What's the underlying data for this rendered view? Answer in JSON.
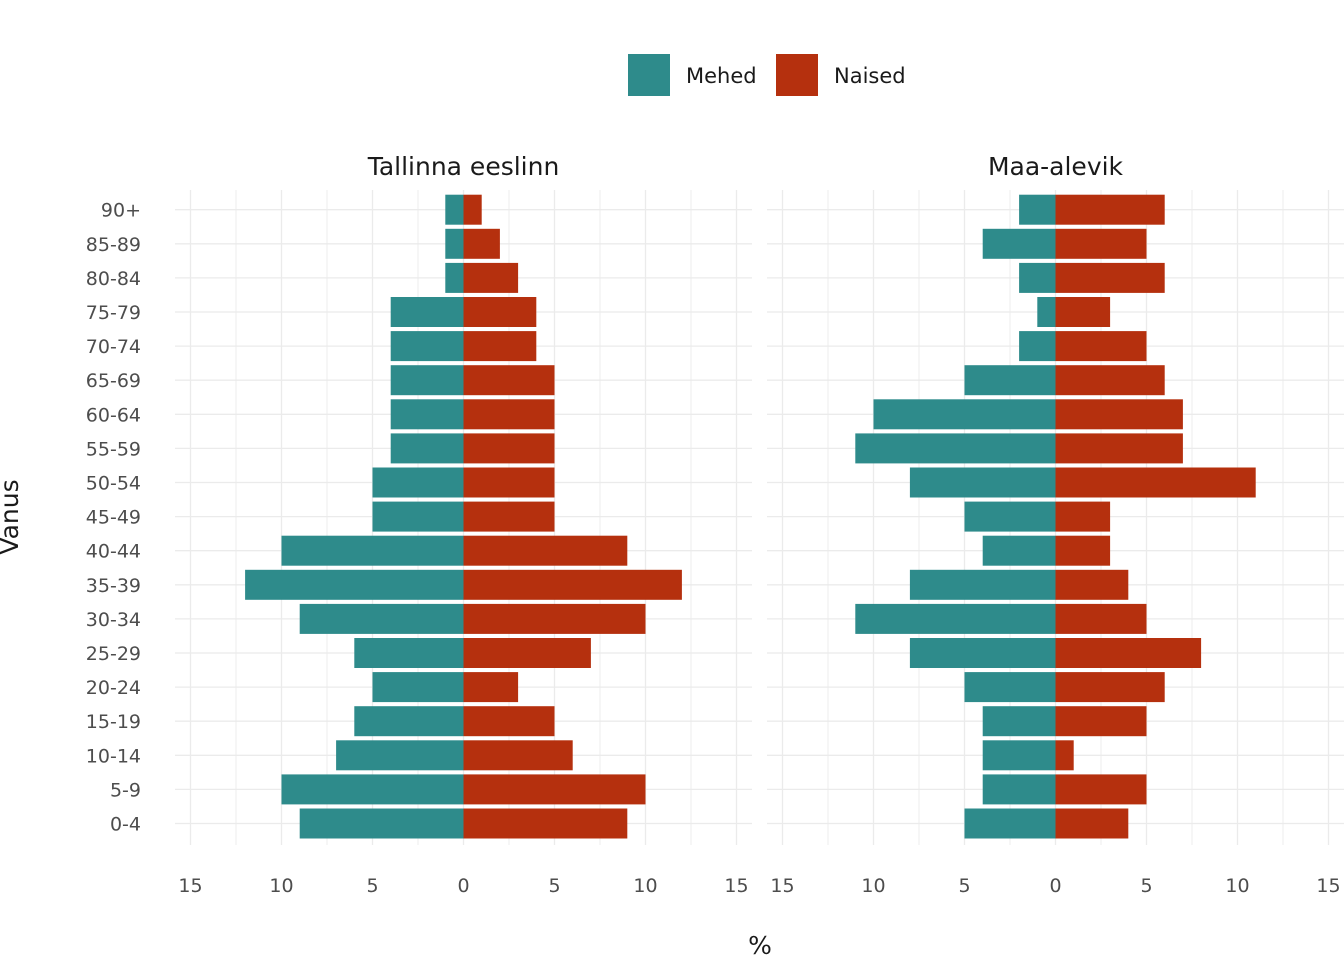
{
  "chart_data": {
    "type": "bar",
    "orientation": "horizontal",
    "subtype": "population-pyramid",
    "xlabel": "%",
    "ylabel": "Vanus",
    "xlim": [
      -15,
      15
    ],
    "x_ticks": [
      -15,
      -10,
      -5,
      0,
      5,
      10,
      15
    ],
    "x_tick_labels": [
      "15",
      "10",
      "5",
      "0",
      "5",
      "10",
      "15"
    ],
    "grid": true,
    "legend": {
      "position": "top",
      "items": [
        {
          "label": "Mehed",
          "color": "#2E8B8B"
        },
        {
          "label": "Naised",
          "color": "#B5300E"
        }
      ]
    },
    "categories": [
      "0-4",
      "5-9",
      "10-14",
      "15-19",
      "20-24",
      "25-29",
      "30-34",
      "35-39",
      "40-44",
      "45-49",
      "50-54",
      "55-59",
      "60-64",
      "65-69",
      "70-74",
      "75-79",
      "80-84",
      "85-89",
      "90+"
    ],
    "panels": [
      {
        "title": "Tallinna eeslinn",
        "series": [
          {
            "name": "Mehed",
            "color": "#2E8B8B",
            "values": [
              9,
              10,
              7,
              6,
              5,
              6,
              9,
              12,
              10,
              5,
              5,
              4,
              4,
              4,
              4,
              4,
              1,
              1,
              1
            ]
          },
          {
            "name": "Naised",
            "color": "#B5300E",
            "values": [
              9,
              10,
              6,
              5,
              3,
              7,
              10,
              12,
              9,
              5,
              5,
              5,
              5,
              5,
              4,
              4,
              3,
              2,
              1
            ]
          }
        ]
      },
      {
        "title": "Maa-alevik",
        "series": [
          {
            "name": "Mehed",
            "color": "#2E8B8B",
            "values": [
              5,
              4,
              4,
              4,
              5,
              8,
              11,
              8,
              4,
              5,
              8,
              11,
              10,
              5,
              2,
              1,
              2,
              4,
              2
            ]
          },
          {
            "name": "Naised",
            "color": "#B5300E",
            "values": [
              4,
              5,
              1,
              5,
              6,
              8,
              5,
              4,
              3,
              3,
              11,
              7,
              7,
              6,
              5,
              3,
              6,
              5,
              6
            ]
          }
        ]
      }
    ]
  }
}
